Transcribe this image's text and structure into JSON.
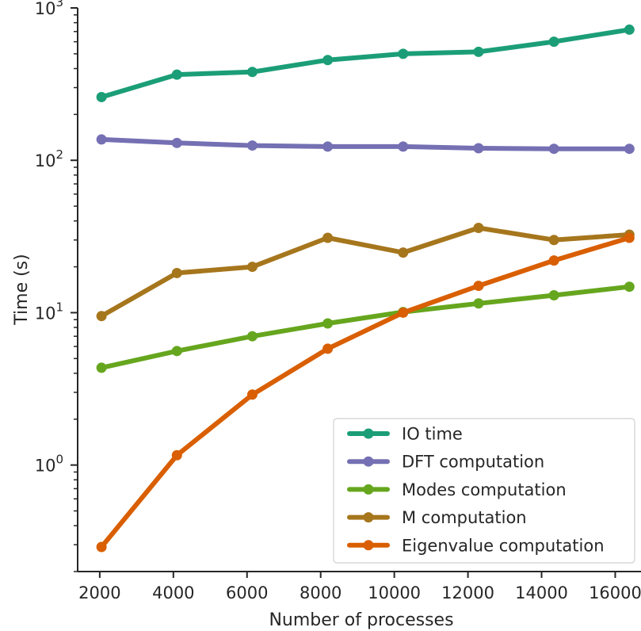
{
  "chart_data": {
    "type": "line",
    "title": "",
    "xlabel": "Number of processes",
    "ylabel": "Time (s)",
    "yscale": "log",
    "ylim": [
      0.2,
      1000
    ],
    "xlim": [
      1400,
      16700
    ],
    "x": [
      2048,
      4096,
      6144,
      8192,
      10240,
      12288,
      14336,
      16384
    ],
    "x_ticks": [
      2000,
      4000,
      6000,
      8000,
      10000,
      12000,
      14000,
      16000
    ],
    "x_tick_labels": [
      "2000",
      "4000",
      "6000",
      "8000",
      "10000",
      "12000",
      "14000",
      "16000"
    ],
    "y_major_ticks": [
      1,
      10,
      100,
      1000
    ],
    "y_tick_labels": [
      {
        "base": "10",
        "exp": "0"
      },
      {
        "base": "10",
        "exp": "1"
      },
      {
        "base": "10",
        "exp": "2"
      },
      {
        "base": "10",
        "exp": "3"
      }
    ],
    "legend_position": "lower-right",
    "grid": false,
    "series": [
      {
        "name": "IO time",
        "color": "#1b9e77",
        "values": [
          260,
          365,
          380,
          455,
          500,
          515,
          600,
          720
        ]
      },
      {
        "name": "DFT computation",
        "color": "#7570b3",
        "values": [
          137,
          130,
          125,
          123,
          123,
          120,
          119,
          119
        ]
      },
      {
        "name": "Modes computation",
        "color": "#66a61e",
        "values": [
          4.35,
          5.6,
          7.0,
          8.5,
          10.1,
          11.5,
          13.0,
          14.8
        ]
      },
      {
        "name": "M computation",
        "color": "#a6761d",
        "values": [
          9.5,
          18.2,
          20.0,
          31.0,
          24.8,
          36.0,
          30.0,
          32.5
        ]
      },
      {
        "name": "Eigenvalue computation",
        "color": "#d95f02",
        "values": [
          0.29,
          1.16,
          2.9,
          5.8,
          10.0,
          15.0,
          22.0,
          31.0
        ]
      }
    ]
  }
}
